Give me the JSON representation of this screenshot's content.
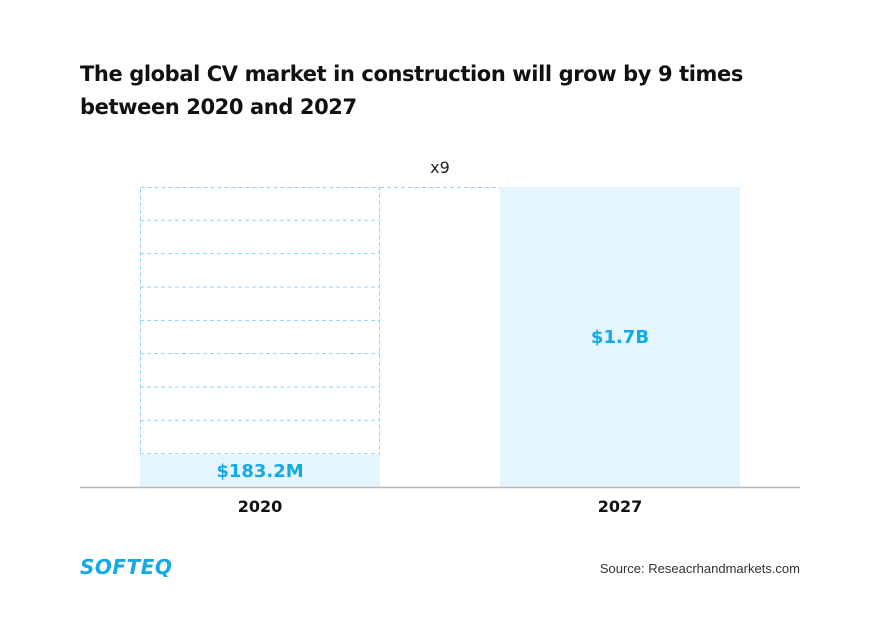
{
  "title": "The global CV market in construction will grow by 9 times between 2020 and 2027",
  "multiplier_label": "x9",
  "logo_text": "SOFTEQ",
  "source": "Source: Reseacrhandmarkets.com",
  "colors": {
    "bar_fill": "#e4f5fd",
    "value_label": "#12a9e8",
    "dashed_outline": "#8fd3f4",
    "axis": "#b8b8b8",
    "brand": "#12a9e8"
  },
  "chart_data": {
    "type": "bar",
    "categories": [
      "2020",
      "2027"
    ],
    "values": [
      183.2,
      1700
    ],
    "value_unit": "M USD",
    "value_labels": [
      "$183.2M",
      "$1.7B"
    ],
    "annotation": "x9",
    "title": "The global CV market in construction will grow by 9 times between 2020 and 2027",
    "xlabel": "",
    "ylabel": "",
    "ylim": [
      0,
      1700
    ],
    "grid": false,
    "legend": "none"
  }
}
